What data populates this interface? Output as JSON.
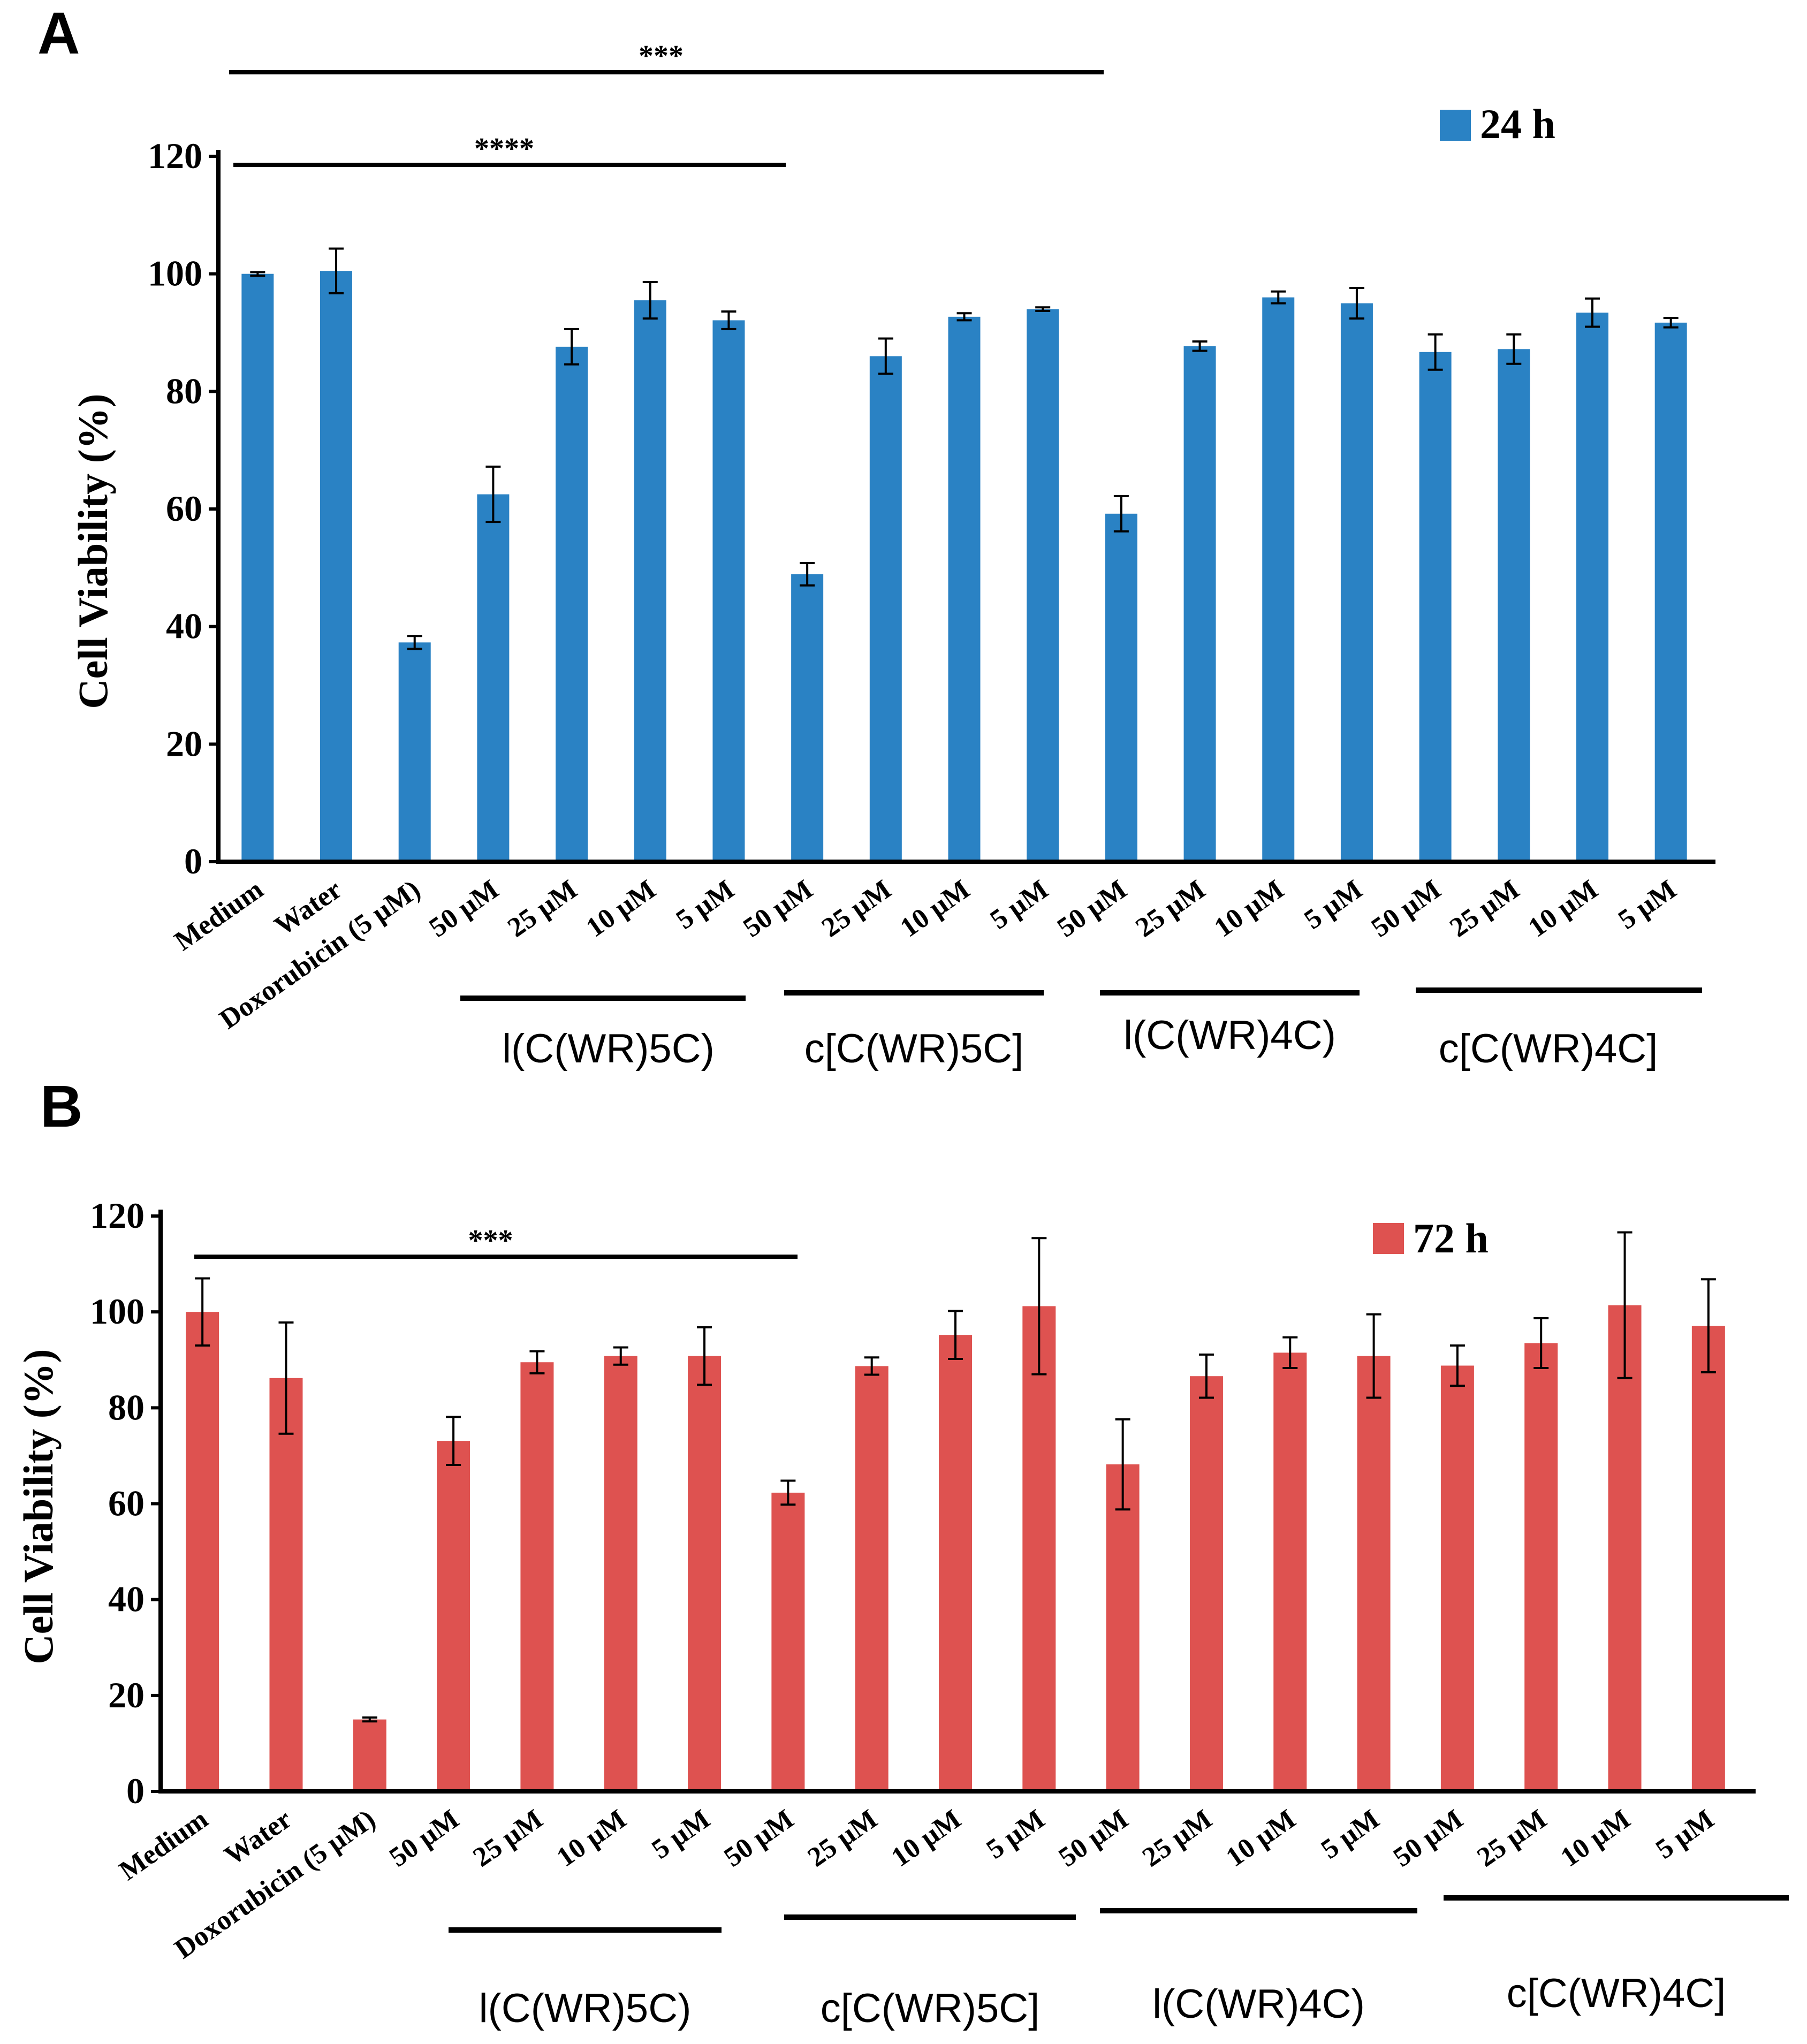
{
  "chart_data": [
    {
      "type": "bar",
      "panel": "A",
      "title": "",
      "xlabel": "",
      "ylabel": "Cell Viability  (%)",
      "ylim": [
        0,
        120
      ],
      "yticks": [
        "0",
        "20",
        "40",
        "60",
        "80",
        "100",
        "120"
      ],
      "legend": "24 h",
      "legend_position": "top-right",
      "color": "#2a82c4",
      "categories": [
        "Medium",
        "Water",
        "Doxorubicin (5 µM)",
        "50 µM",
        "25 µM",
        "10 µM",
        "5 µM",
        "50 µM",
        "25 µM",
        "10 µM",
        "5 µM",
        "50 µM",
        "25 µM",
        "10 µM",
        "5 µM",
        "50 µM",
        "25 µM",
        "10 µM",
        "5 µM"
      ],
      "series": [
        {
          "name": "24 h",
          "values": [
            100,
            100.5,
            37.3,
            62.5,
            87.6,
            95.5,
            92.1,
            48.9,
            86.0,
            92.7,
            94.0,
            59.2,
            87.7,
            96.0,
            95.0,
            86.7,
            87.2,
            93.4,
            91.7
          ],
          "errors": [
            0.3,
            3.8,
            1.1,
            4.7,
            3.0,
            3.1,
            1.5,
            1.9,
            3.0,
            0.6,
            0.3,
            3.0,
            0.8,
            1.0,
            2.6,
            3.0,
            2.5,
            2.4,
            0.8
          ]
        }
      ],
      "groups": [
        {
          "label": "l(C(WR)5C)",
          "from": 3,
          "to": 6
        },
        {
          "label": "c[C(WR)5C]",
          "from": 7,
          "to": 10
        },
        {
          "label": "l(C(WR)4C)",
          "from": 11,
          "to": 14
        },
        {
          "label": "c[C(WR)4C]",
          "from": 15,
          "to": 18
        }
      ],
      "significance": [
        {
          "label": "***",
          "from": 0,
          "to": 11
        },
        {
          "label": "****",
          "from": 0,
          "to": 7
        }
      ]
    },
    {
      "type": "bar",
      "panel": "B",
      "title": "",
      "xlabel": "",
      "ylabel": "Cell Viability  (%)",
      "ylim": [
        0,
        120
      ],
      "yticks": [
        "0",
        "20",
        "40",
        "60",
        "80",
        "100",
        "120"
      ],
      "legend": "72 h",
      "legend_position": "top-right",
      "color": "#de5250",
      "categories": [
        "Medium",
        "Water",
        "Doxorubicin (5 µM)",
        "50 µM",
        "25 µM",
        "10 µM",
        "5 µM",
        "50 µM",
        "25 µM",
        "10 µM",
        "5 µM",
        "50 µM",
        "25 µM",
        "10 µM",
        "5 µM",
        "50 µM",
        "25 µM",
        "10 µM",
        "5 µM"
      ],
      "series": [
        {
          "name": "72 h",
          "values": [
            100,
            86.2,
            15.0,
            73.1,
            89.5,
            90.8,
            90.8,
            62.3,
            88.7,
            95.2,
            101.2,
            68.2,
            86.6,
            91.5,
            90.8,
            88.8,
            93.5,
            101.4,
            97.1
          ],
          "errors": [
            7.0,
            11.6,
            0.4,
            5.0,
            2.3,
            1.8,
            6.0,
            2.5,
            1.8,
            5.0,
            14.2,
            9.4,
            4.5,
            3.2,
            8.7,
            4.2,
            5.2,
            15.2,
            9.7
          ]
        }
      ],
      "groups": [
        {
          "label": "l(C(WR)5C)",
          "from": 3,
          "to": 6
        },
        {
          "label": "c[C(WR)5C]",
          "from": 7,
          "to": 10
        },
        {
          "label": "l(C(WR)4C)",
          "from": 11,
          "to": 14
        },
        {
          "label": "c[C(WR)4C]",
          "from": 15,
          "to": 18
        }
      ],
      "significance": [
        {
          "label": "***",
          "from": 0,
          "to": 7
        }
      ]
    }
  ]
}
